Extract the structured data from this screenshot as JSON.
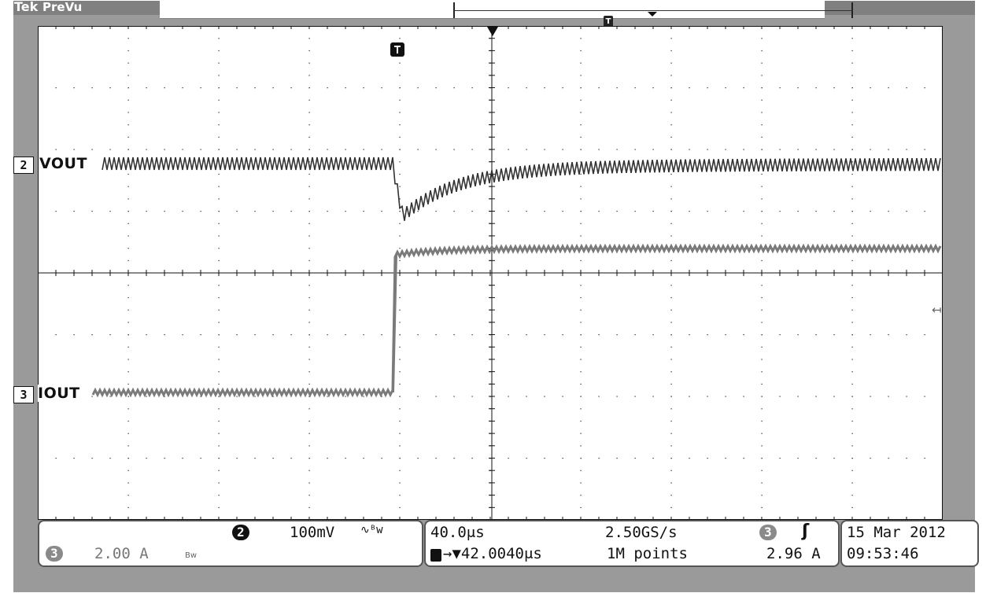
{
  "brand": {
    "logo": "Tek",
    "mode": "PreVu"
  },
  "channels": [
    {
      "number": "2",
      "label": "VOUT"
    },
    {
      "number": "3",
      "label": "IOUT"
    }
  ],
  "vertical": {
    "ch2_number": "2",
    "ch2_scale": "100mV",
    "ch2_coupling": "∿ᴮw",
    "ch3_number": "3",
    "ch3_scale": "2.00 A",
    "ch3_bw": "Bw"
  },
  "horizontal": {
    "time_per_div": "40.0μs",
    "sample_rate": "2.50GS/s",
    "trigger_offset": "→▼42.0040μs",
    "record_length": "1M points"
  },
  "trigger": {
    "source_number": "3",
    "slope": "ʃ",
    "level": "2.96 A"
  },
  "datetime": {
    "date": "15 Mar  2012",
    "time": "09:53:46"
  },
  "colors": {
    "screen_bg": "#ffffff",
    "frame": "#9a9a9a",
    "graticule": "#222222",
    "trace_vout": "#333333",
    "trace_iout": "#7a7a7a"
  },
  "icons": {
    "trigger_marker": "trigger-T-icon",
    "trigger_position": "down-triangle-icon",
    "ground_marker": "left-arrow-icon"
  }
}
